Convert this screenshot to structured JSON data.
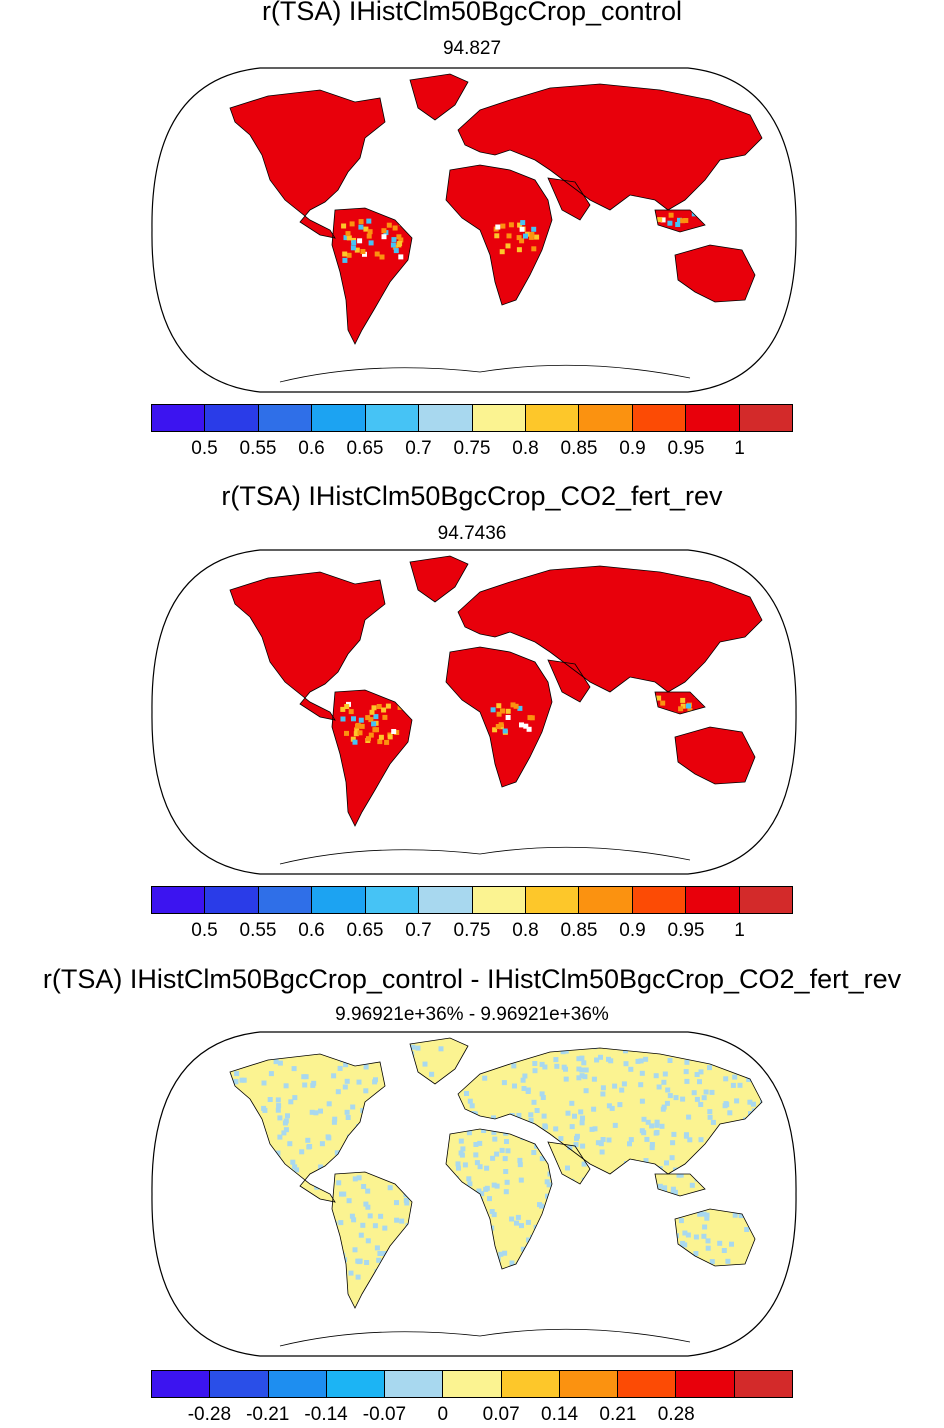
{
  "panels": [
    {
      "title": "r(TSA) IHistClm50BgcCrop_control",
      "subtitle": "94.827",
      "colorbar": {
        "colors": [
          "#3c14f0",
          "#2a3ce8",
          "#2f6fe8",
          "#1ca3f2",
          "#46c3f5",
          "#a8d8ef",
          "#fbf391",
          "#fdc72a",
          "#fb9210",
          "#fc4b05",
          "#e8000b",
          "#d32a2a"
        ],
        "labels": [
          "0.5",
          "0.55",
          "0.6",
          "0.65",
          "0.7",
          "0.75",
          "0.8",
          "0.85",
          "0.9",
          "0.95",
          "1"
        ]
      }
    },
    {
      "title": "r(TSA) IHistClm50BgcCrop_CO2_fert_rev",
      "subtitle": "94.7436",
      "colorbar": {
        "colors": [
          "#3c14f0",
          "#2a3ce8",
          "#2f6fe8",
          "#1ca3f2",
          "#46c3f5",
          "#a8d8ef",
          "#fbf391",
          "#fdc72a",
          "#fb9210",
          "#fc4b05",
          "#e8000b",
          "#d32a2a"
        ],
        "labels": [
          "0.5",
          "0.55",
          "0.6",
          "0.65",
          "0.7",
          "0.75",
          "0.8",
          "0.85",
          "0.9",
          "0.95",
          "1"
        ]
      }
    },
    {
      "title": "r(TSA) IHistClm50BgcCrop_control - IHistClm50BgcCrop_CO2_fert_rev",
      "subtitle": "9.96921e+36% - 9.96921e+36%",
      "colorbar": {
        "colors": [
          "#3c14f0",
          "#2a4fe8",
          "#1e8ef0",
          "#1cb4f4",
          "#a8d8ef",
          "#fbf391",
          "#fdc72a",
          "#fb9210",
          "#fc4b05",
          "#e8000b",
          "#d32a2a"
        ],
        "labels": [
          "-0.28",
          "-0.21",
          "-0.14",
          "-0.07",
          "0",
          "0.07",
          "0.14",
          "0.21",
          "0.28"
        ]
      }
    }
  ],
  "land_fill": [
    "#e8000b",
    "#e8000b",
    "#fbf391"
  ],
  "land_speckle": [
    "#fb9210",
    "#fb9210",
    "#a8d8ef"
  ]
}
